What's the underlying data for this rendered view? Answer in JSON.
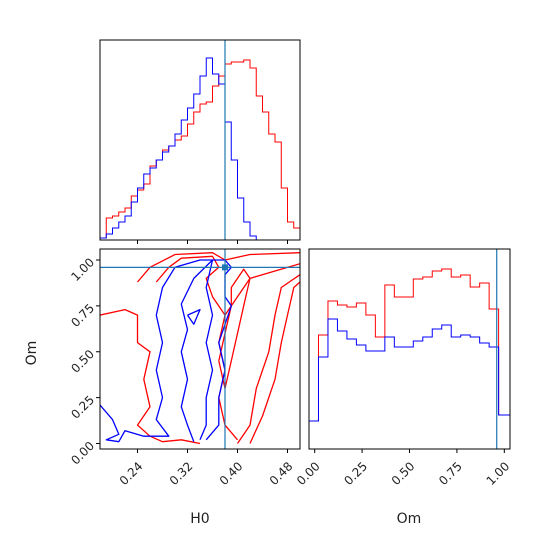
{
  "chart_data": {
    "type": "corner",
    "colors": {
      "red": "#ff0000",
      "blue": "#0000ff",
      "truth": "#1f77b4",
      "frame": "#000000"
    },
    "truth": {
      "H0": 0.38,
      "Om": 0.96
    },
    "panels": [
      {
        "id": "H0-hist",
        "type": "step-histogram",
        "xlim": [
          0.18,
          0.5
        ],
        "ylim": [
          0,
          1.0
        ],
        "x_ticks": [
          0.24,
          0.32,
          0.4,
          0.48
        ],
        "bin_edges": [
          0.18,
          0.19,
          0.2,
          0.21,
          0.22,
          0.23,
          0.24,
          0.25,
          0.26,
          0.27,
          0.28,
          0.29,
          0.3,
          0.31,
          0.32,
          0.33,
          0.34,
          0.35,
          0.36,
          0.37,
          0.38,
          0.39,
          0.4,
          0.41,
          0.42,
          0.43,
          0.44,
          0.45,
          0.46,
          0.47,
          0.48,
          0.49,
          0.5
        ],
        "series": [
          {
            "color": "red",
            "values": [
              0.01,
              0.11,
              0.12,
              0.14,
              0.16,
              0.22,
              0.25,
              0.28,
              0.37,
              0.4,
              0.45,
              0.47,
              0.5,
              0.52,
              0.58,
              0.64,
              0.68,
              0.69,
              0.77,
              0.82,
              0.88,
              0.89,
              0.89,
              0.9,
              0.86,
              0.72,
              0.64,
              0.53,
              0.49,
              0.26,
              0.09,
              0.06
            ]
          },
          {
            "color": "blue",
            "values": [
              0.01,
              0.03,
              0.06,
              0.09,
              0.12,
              0.19,
              0.26,
              0.33,
              0.36,
              0.4,
              0.44,
              0.47,
              0.53,
              0.6,
              0.66,
              0.73,
              0.82,
              0.91,
              0.83,
              0.78,
              0.59,
              0.4,
              0.21,
              0.09,
              0.02,
              0.0,
              0.0,
              0.0,
              0.0,
              0.0,
              0.0,
              0.0
            ]
          }
        ]
      },
      {
        "id": "H0-Om-contour",
        "type": "contour",
        "xlim": [
          0.18,
          0.5
        ],
        "ylim": [
          -0.03,
          1.06
        ],
        "x_ticks": [
          0.24,
          0.32,
          0.4,
          0.48
        ],
        "y_ticks": [
          0.0,
          0.25,
          0.5,
          0.75,
          1.0
        ],
        "x_tick_labels": [
          "0.24",
          "0.32",
          "0.40",
          "0.48"
        ],
        "y_tick_labels": [
          "0.00",
          "0.25",
          "0.50",
          "0.75",
          "1.00"
        ],
        "xlabel": "H0",
        "ylabel": "Om",
        "series": [
          {
            "color": "red",
            "contours": [
              [
                [
                  0.18,
                  0.7
                ],
                [
                  0.22,
                  0.73
                ],
                [
                  0.24,
                  0.7
                ],
                [
                  0.24,
                  0.55
                ],
                [
                  0.26,
                  0.5
                ],
                [
                  0.25,
                  0.35
                ],
                [
                  0.26,
                  0.2
                ],
                [
                  0.24,
                  0.1
                ],
                [
                  0.26,
                  0.04
                ],
                [
                  0.28,
                  0.01
                ],
                [
                  0.31,
                  0.02
                ],
                [
                  0.34,
                  0.0
                ]
              ],
              [
                [
                  0.27,
                  0.88
                ],
                [
                  0.29,
                  0.96
                ],
                [
                  0.31,
                  1.01
                ],
                [
                  0.36,
                  1.02
                ],
                [
                  0.37,
                  0.96
                ],
                [
                  0.35,
                  0.9
                ],
                [
                  0.36,
                  0.8
                ],
                [
                  0.38,
                  0.7
                ],
                [
                  0.37,
                  0.55
                ],
                [
                  0.38,
                  0.4
                ],
                [
                  0.37,
                  0.25
                ],
                [
                  0.38,
                  0.1
                ],
                [
                  0.4,
                  0.02
                ]
              ],
              [
                [
                  0.24,
                  0.88
                ],
                [
                  0.26,
                  0.96
                ],
                [
                  0.3,
                  1.03
                ],
                [
                  0.36,
                  1.04
                ],
                [
                  0.38,
                  1.0
                ],
                [
                  0.42,
                  1.03
                ],
                [
                  0.5,
                  1.04
                ]
              ],
              [
                [
                  0.38,
                  0.7
                ],
                [
                  0.4,
                  0.8
                ],
                [
                  0.42,
                  0.9
                ],
                [
                  0.46,
                  0.94
                ],
                [
                  0.5,
                  0.98
                ]
              ],
              [
                [
                  0.4,
                  0.0
                ],
                [
                  0.42,
                  0.1
                ],
                [
                  0.43,
                  0.3
                ],
                [
                  0.45,
                  0.5
                ],
                [
                  0.46,
                  0.7
                ],
                [
                  0.47,
                  0.85
                ],
                [
                  0.5,
                  0.92
                ]
              ],
              [
                [
                  0.42,
                  0.0
                ],
                [
                  0.44,
                  0.15
                ],
                [
                  0.46,
                  0.35
                ],
                [
                  0.47,
                  0.55
                ],
                [
                  0.48,
                  0.7
                ],
                [
                  0.49,
                  0.85
                ],
                [
                  0.5,
                  0.88
                ]
              ],
              [
                [
                  0.37,
                  0.45
                ],
                [
                  0.38,
                  0.6
                ],
                [
                  0.39,
                  0.75
                ],
                [
                  0.39,
                  0.85
                ],
                [
                  0.41,
                  0.95
                ],
                [
                  0.42,
                  0.9
                ],
                [
                  0.41,
                  0.75
                ],
                [
                  0.4,
                  0.6
                ],
                [
                  0.39,
                  0.45
                ],
                [
                  0.38,
                  0.3
                ],
                [
                  0.37,
                  0.45
                ]
              ]
            ]
          },
          {
            "color": "blue",
            "contours": [
              [
                [
                  0.18,
                  0.21
                ],
                [
                  0.2,
                  0.13
                ],
                [
                  0.21,
                  0.05
                ],
                [
                  0.19,
                  0.02
                ],
                [
                  0.21,
                  0.01
                ],
                [
                  0.22,
                  0.07
                ],
                [
                  0.25,
                  0.04
                ],
                [
                  0.29,
                  0.04
                ],
                [
                  0.27,
                  0.13
                ],
                [
                  0.28,
                  0.25
                ],
                [
                  0.27,
                  0.4
                ],
                [
                  0.28,
                  0.55
                ],
                [
                  0.27,
                  0.7
                ],
                [
                  0.28,
                  0.85
                ],
                [
                  0.3,
                  0.96
                ],
                [
                  0.34,
                  1.0
                ],
                [
                  0.38,
                  1.0
                ],
                [
                  0.39,
                  0.96
                ],
                [
                  0.38,
                  0.92
                ],
                [
                  0.38,
                  0.8
                ],
                [
                  0.39,
                  0.75
                ],
                [
                  0.37,
                  0.55
                ],
                [
                  0.38,
                  0.4
                ],
                [
                  0.37,
                  0.25
                ],
                [
                  0.37,
                  0.1
                ],
                [
                  0.35,
                  0.02
                ]
              ],
              [
                [
                  0.33,
                  0.01
                ],
                [
                  0.32,
                  0.1
                ],
                [
                  0.31,
                  0.2
                ],
                [
                  0.32,
                  0.35
                ],
                [
                  0.31,
                  0.5
                ],
                [
                  0.32,
                  0.62
                ],
                [
                  0.31,
                  0.76
                ],
                [
                  0.33,
                  0.9
                ],
                [
                  0.36,
                  1.0
                ]
              ],
              [
                [
                  0.34,
                  0.02
                ],
                [
                  0.35,
                  0.1
                ],
                [
                  0.35,
                  0.25
                ],
                [
                  0.36,
                  0.4
                ],
                [
                  0.35,
                  0.55
                ],
                [
                  0.36,
                  0.7
                ],
                [
                  0.35,
                  0.85
                ],
                [
                  0.36,
                  1.0
                ]
              ],
              [
                [
                  0.32,
                  0.7
                ],
                [
                  0.34,
                  0.73
                ],
                [
                  0.33,
                  0.65
                ],
                [
                  0.32,
                  0.7
                ]
              ]
            ]
          }
        ]
      },
      {
        "id": "Om-hist",
        "type": "step-histogram",
        "xlim": [
          -0.03,
          1.03
        ],
        "ylim": [
          0,
          1.0
        ],
        "x_ticks": [
          0.0,
          0.25,
          0.5,
          0.75,
          1.0
        ],
        "x_tick_labels": [
          "0.00",
          "0.25",
          "0.50",
          "0.75",
          "1.00"
        ],
        "xlabel": "Om",
        "bin_edges": [
          -0.03,
          0.02,
          0.07,
          0.12,
          0.17,
          0.22,
          0.27,
          0.32,
          0.37,
          0.42,
          0.47,
          0.52,
          0.57,
          0.62,
          0.67,
          0.72,
          0.77,
          0.82,
          0.87,
          0.92,
          0.97,
          1.03
        ],
        "series": [
          {
            "color": "red",
            "values": [
              0.14,
              0.57,
              0.74,
              0.72,
              0.71,
              0.73,
              0.67,
              0.56,
              0.82,
              0.76,
              0.76,
              0.85,
              0.86,
              0.89,
              0.9,
              0.86,
              0.87,
              0.81,
              0.83,
              0.7,
              0.17
            ]
          },
          {
            "color": "blue",
            "values": [
              0.14,
              0.46,
              0.65,
              0.59,
              0.55,
              0.52,
              0.49,
              0.49,
              0.56,
              0.51,
              0.51,
              0.54,
              0.56,
              0.6,
              0.62,
              0.56,
              0.57,
              0.56,
              0.53,
              0.51,
              0.17
            ]
          }
        ]
      }
    ]
  }
}
